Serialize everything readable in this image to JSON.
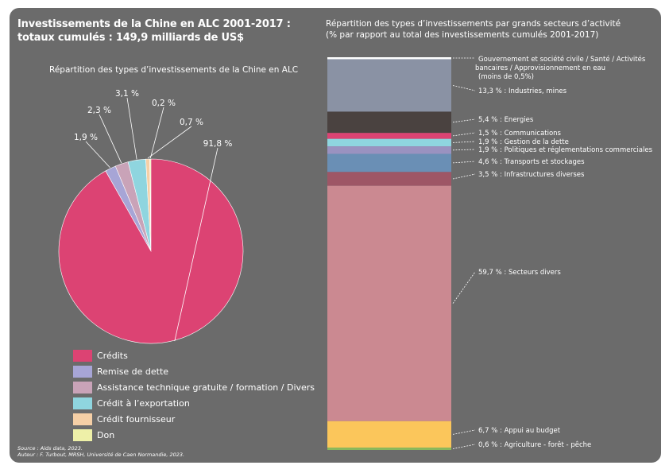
{
  "title_line1": "Investissements de la Chine en ALC 2001-2017 :",
  "title_line2": "totaux cumulés : 149,9 milliards de US$",
  "source_line1": "Source : Aids data, 2023.",
  "source_line2": "Auteur : F. Turbout, MRSH, Université de Caen Normandie, 2023.",
  "colors": {
    "panel": "#6b6b6b",
    "text": "#ffffff"
  },
  "chart_data": [
    {
      "type": "pie",
      "title": "Répartition des types d’investissements de la Chine  en ALC",
      "legend_position": "bottom-left",
      "slices": [
        {
          "name": "Crédits",
          "value": 91.8,
          "label": "91,8 %",
          "color": "#dc4373"
        },
        {
          "name": "Remise de dette",
          "value": 1.9,
          "label": "1,9 %",
          "color": "#a7a5d6"
        },
        {
          "name": "Assistance technique gratuite / formation / Divers",
          "value": 2.3,
          "label": "2,3 %",
          "color": "#c9a3b8"
        },
        {
          "name": "Crédit à l’exportation",
          "value": 3.1,
          "label": "3,1 %",
          "color": "#8fd5df"
        },
        {
          "name": "Crédit fournisseur",
          "value": 0.7,
          "label": "0,7 %",
          "color": "#f5cfa6"
        },
        {
          "name": "Don",
          "value": 0.2,
          "label": "0,2 %",
          "color": "#eef0a8"
        }
      ]
    },
    {
      "type": "bar",
      "stacked": true,
      "title_line1": "Répartition des types d’investissements par grands secteurs d’activité",
      "title_line2": "(% par rapport au total des investissements cumulés 2001-2017)",
      "segments": [
        {
          "value": 0.5,
          "color": "#ffffff",
          "label_lines": [
            "Gouvernement et société civile / Santé / Activités",
            "bancaires / Approvisionnement en eau",
            "(moins de 0,5%)"
          ]
        },
        {
          "value": 13.3,
          "color": "#8a92a4",
          "label_lines": [
            "13,3 % : Industries, mines"
          ]
        },
        {
          "value": 5.4,
          "color": "#4a4240",
          "label_lines": [
            "5,4 % : Energies"
          ]
        },
        {
          "value": 1.5,
          "color": "#dc4373",
          "label_lines": [
            "1,5 % : Communications"
          ]
        },
        {
          "value": 1.9,
          "color": "#8fd5df",
          "label_lines": [
            "1,9 % : Gestion de la dette"
          ]
        },
        {
          "value": 1.9,
          "color": "#9a92c0",
          "label_lines": [
            "1,9 % : Politiques et réglementations commerciales"
          ]
        },
        {
          "value": 4.6,
          "color": "#6a8fb5",
          "label_lines": [
            "4,6 % : Transports et stockages"
          ]
        },
        {
          "value": 3.5,
          "color": "#9e5666",
          "label_lines": [
            "3,5 % : Infrastructures diverses"
          ]
        },
        {
          "value": 59.7,
          "color": "#cb8991",
          "label_lines": [
            "59,7 % : Secteurs divers"
          ]
        },
        {
          "value": 6.7,
          "color": "#fbc65b",
          "label_lines": [
            "6,7 % : Appui au budget"
          ]
        },
        {
          "value": 0.6,
          "color": "#8ab85c",
          "label_lines": [
            "0,6 % : Agriculture - forêt - pêche"
          ]
        }
      ]
    }
  ]
}
